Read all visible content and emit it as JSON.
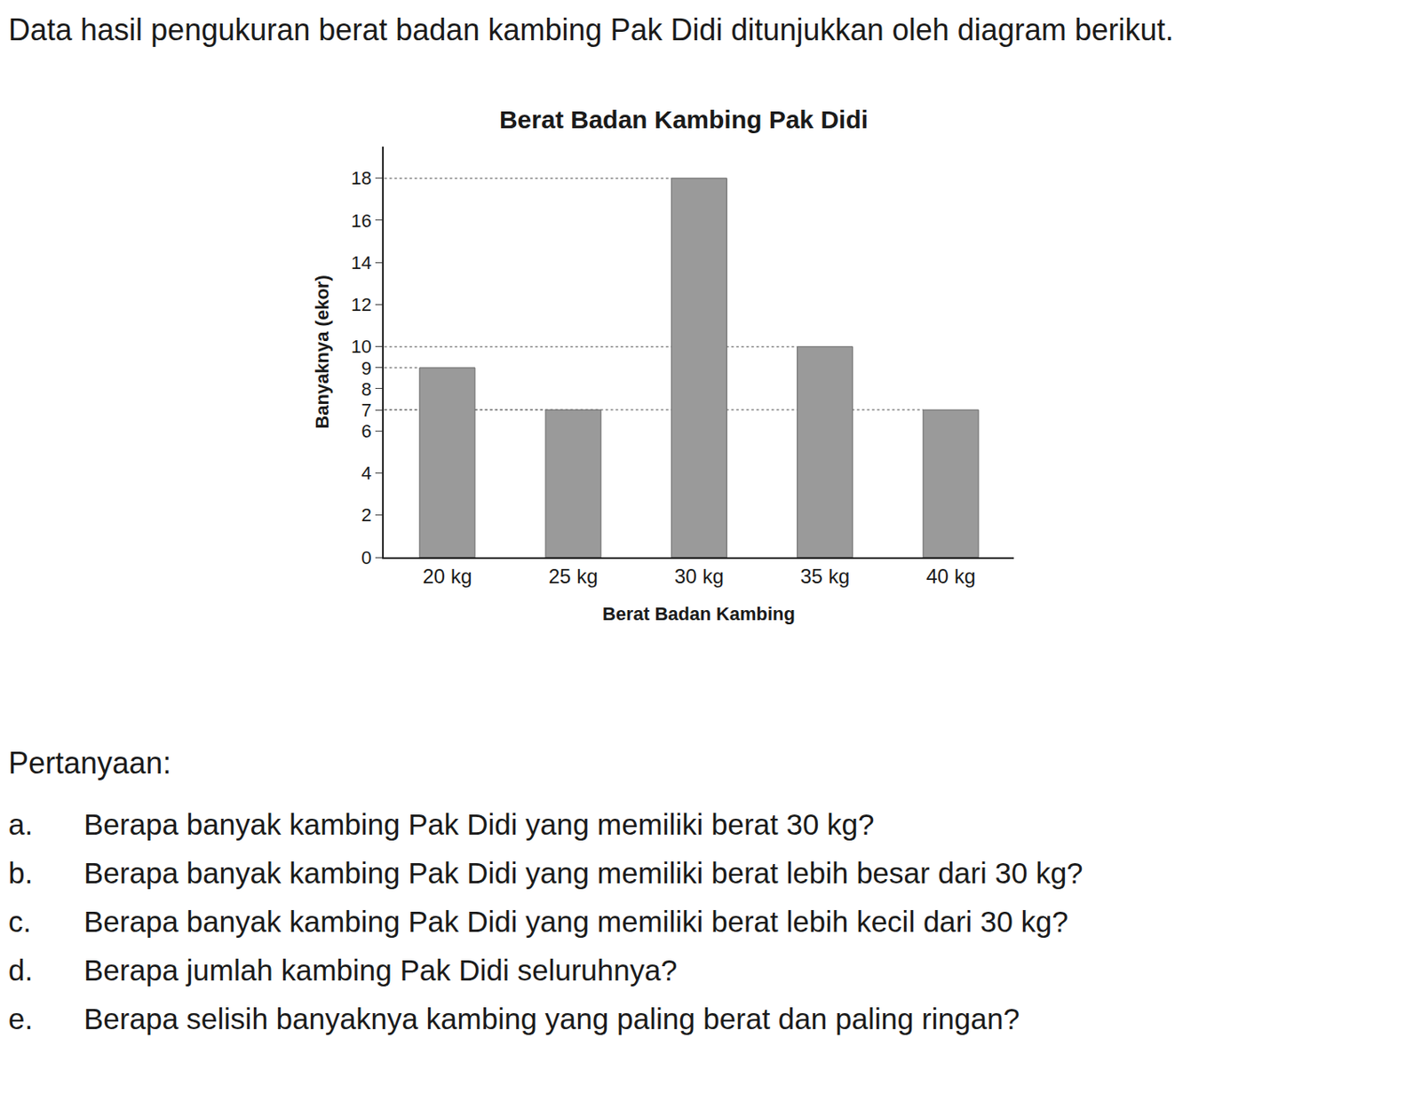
{
  "intro": "Data hasil pengukuran berat badan kambing Pak Didi ditunjukkan oleh diagram berikut.",
  "chart_data": {
    "type": "bar",
    "title": "Berat Badan Kambing Pak Didi",
    "x_label": "Berat Badan Kambing",
    "y_label": "Banyaknya (ekor)",
    "categories": [
      "20 kg",
      "25 kg",
      "30 kg",
      "35 kg",
      "40 kg"
    ],
    "values": [
      9,
      7,
      18,
      10,
      7
    ],
    "color": "#9a9a9a",
    "ylim": [
      0,
      19.5
    ],
    "yticks": [
      0,
      2,
      4,
      6,
      7,
      8,
      9,
      10,
      12,
      14,
      16,
      18
    ],
    "grid": false
  },
  "questions_heading": "Pertanyaan:",
  "questions": [
    {
      "label": "a.",
      "text": "Berapa banyak kambing Pak Didi yang memiliki berat 30 kg?"
    },
    {
      "label": "b.",
      "text": "Berapa banyak kambing Pak Didi yang memiliki berat lebih besar dari 30 kg?"
    },
    {
      "label": "c.",
      "text": "Berapa banyak kambing Pak Didi yang memiliki berat lebih kecil dari 30 kg?"
    },
    {
      "label": "d.",
      "text": "Berapa jumlah kambing Pak Didi seluruhnya?"
    },
    {
      "label": "e.",
      "text": "Berapa selisih banyaknya kambing yang paling berat dan paling ringan?"
    }
  ]
}
